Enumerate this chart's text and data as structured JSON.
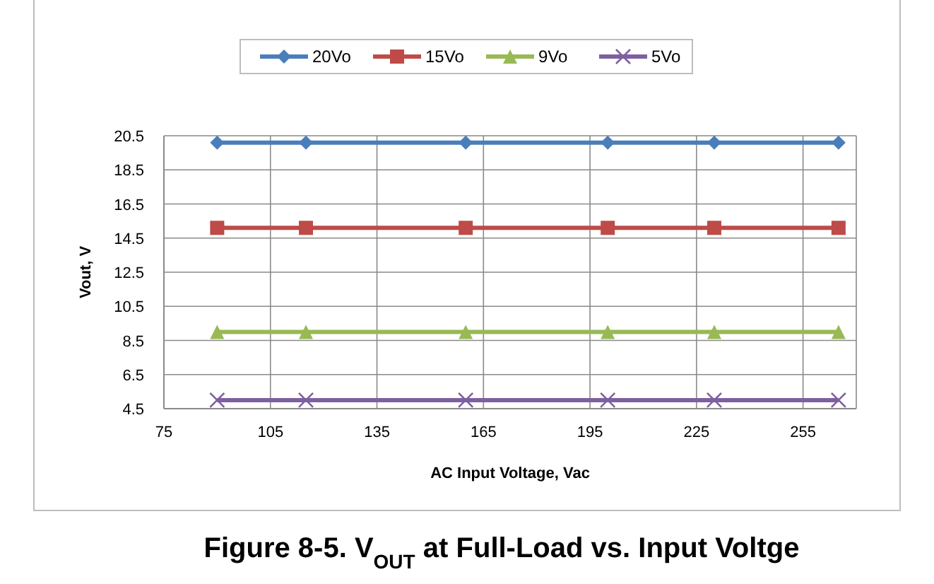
{
  "chart_data": {
    "type": "line",
    "title": "Figure 8-5. V$_{OUT}$ at Full-Load vs. Input Voltge",
    "xlabel": "AC Input Voltage, Vac",
    "ylabel": "Vout, V",
    "x": [
      90,
      115,
      160,
      200,
      230,
      265
    ],
    "series": [
      {
        "name": "20Vo",
        "color": "#4a7ebb",
        "marker": "diamond",
        "values": [
          20.1,
          20.1,
          20.1,
          20.1,
          20.1,
          20.1
        ]
      },
      {
        "name": "15Vo",
        "color": "#be4b48",
        "marker": "square",
        "values": [
          15.1,
          15.1,
          15.1,
          15.1,
          15.1,
          15.1
        ]
      },
      {
        "name": "9Vo",
        "color": "#98b954",
        "marker": "triangle",
        "values": [
          9.0,
          9.0,
          9.0,
          9.0,
          9.0,
          9.0
        ]
      },
      {
        "name": "5Vo",
        "color": "#7d60a0",
        "marker": "cross",
        "values": [
          5.0,
          5.0,
          5.0,
          5.0,
          5.0,
          5.0
        ]
      }
    ],
    "xlim": [
      75,
      270
    ],
    "xticks": [
      75,
      105,
      135,
      165,
      195,
      225,
      255
    ],
    "ylim": [
      4.5,
      20.5
    ],
    "yticks": [
      {
        "value": 4.5,
        "label": "4.5"
      },
      {
        "value": 6.5,
        "label": "6.5"
      },
      {
        "value": 8.5,
        "label": "8.5"
      },
      {
        "value": 10.5,
        "label": "10.5"
      },
      {
        "value": 12.5,
        "label": "12.5"
      },
      {
        "value": 14.5,
        "label": "14.5"
      },
      {
        "value": 16.5,
        "label": "16.5"
      },
      {
        "value": 18.5,
        "label": "18.5"
      },
      {
        "value": 20.5,
        "label": "20.5"
      }
    ],
    "grid": true,
    "legend": "top",
    "line_style": "solid"
  }
}
